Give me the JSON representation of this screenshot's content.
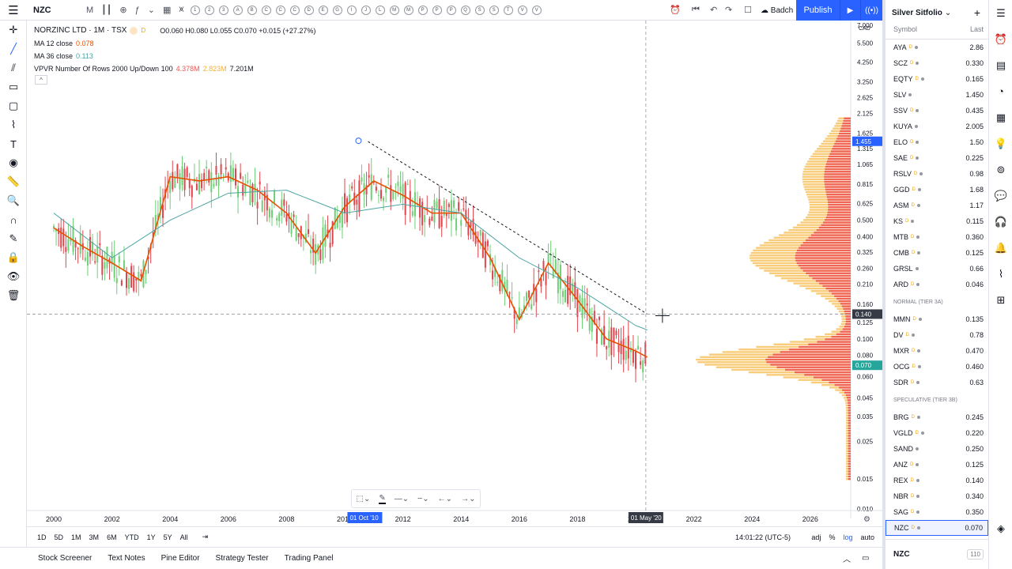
{
  "toolbar": {
    "symbol": "NZC",
    "interval": "M",
    "circle_icons": [
      "1",
      "2",
      "3",
      "A",
      "B",
      "C",
      "C",
      "C",
      "D",
      "E",
      "G",
      "I",
      "J",
      "L",
      "M",
      "M",
      "P",
      "P",
      "P",
      "Q",
      "S",
      "S",
      "T",
      "V",
      "V"
    ],
    "batch_label": "Badch",
    "publish_label": "Publish"
  },
  "legend": {
    "title": "NORZINC LTD · 1M · TSX",
    "flag": "D",
    "ohlc": "O0.060 H0.080 L0.055 C0.070 +0.015 (+27.27%)",
    "ma12_label": "MA 12 close",
    "ma12_value": "0.078",
    "ma36_label": "MA 36 close",
    "ma36_value": "0.113",
    "vpvr_label": "VPVR Number Of Rows 2000 Up/Down 100",
    "vpvr_v1": "4.378M",
    "vpvr_v2": "2.823M",
    "vpvr_v3": "7.201M"
  },
  "chart_data": {
    "type": "line",
    "title": "NORZINC LTD · 1M · TSX",
    "x_ticks": [
      "2000",
      "2002",
      "2004",
      "2006",
      "2008",
      "2010",
      "2012",
      "2014",
      "2016",
      "2018",
      "2020",
      "2022",
      "2024",
      "2026"
    ],
    "y_scale": "log",
    "y_currency": "CAD",
    "y_ticks": [
      "7.000",
      "5.500",
      "4.250",
      "3.250",
      "2.625",
      "2.125",
      "1.625",
      "1.315",
      "1.065",
      "0.815",
      "0.625",
      "0.500",
      "0.400",
      "0.325",
      "0.260",
      "0.210",
      "0.160",
      "0.125",
      "0.100",
      "0.080",
      "0.060",
      "0.045",
      "0.035",
      "0.025",
      "0.015",
      "0.010"
    ],
    "price_label_last": "1.455",
    "crosshair_price": "0.140",
    "current_price": "0.070",
    "crosshair_date": "01 May '20",
    "selected_date": "01 Oct '10",
    "series": [
      {
        "name": "MA 12 close",
        "x": [
          2000,
          2001,
          2002,
          2003,
          2004,
          2005,
          2006,
          2007,
          2008,
          2009,
          2010,
          2011,
          2012,
          2013,
          2014,
          2015,
          2016,
          2017,
          2018,
          2019,
          2020,
          2020.4
        ],
        "y": [
          0.45,
          0.35,
          0.28,
          0.22,
          0.9,
          0.85,
          0.9,
          0.75,
          0.55,
          0.32,
          0.6,
          0.85,
          0.7,
          0.55,
          0.55,
          0.3,
          0.13,
          0.28,
          0.17,
          0.1,
          0.085,
          0.078
        ]
      },
      {
        "name": "MA 36 close",
        "x": [
          2000,
          2002,
          2004,
          2006,
          2008,
          2010,
          2012,
          2014,
          2016,
          2018,
          2020,
          2020.4
        ],
        "y": [
          0.55,
          0.3,
          0.5,
          0.72,
          0.75,
          0.55,
          0.62,
          0.55,
          0.3,
          0.2,
          0.12,
          0.113
        ]
      }
    ],
    "trendline": {
      "from": [
        2010.8,
        1.45
      ],
      "to": [
        2020.4,
        0.14
      ]
    }
  },
  "range": {
    "buttons": [
      "1D",
      "5D",
      "1M",
      "3M",
      "6M",
      "YTD",
      "1Y",
      "5Y",
      "All"
    ],
    "time": "14:01:22 (UTC-5)",
    "adj": "adj",
    "percent": "%",
    "log": "log",
    "auto": "auto"
  },
  "bottom_tabs": [
    "Stock Screener",
    "Text Notes",
    "Pine Editor",
    "Strategy Tester",
    "Trading Panel"
  ],
  "watchlist": {
    "title": "Silver Sitfolio",
    "col_symbol": "Symbol",
    "col_last": "Last",
    "groups": [
      {
        "name": "",
        "rows": [
          {
            "s": "AYA",
            "d": true,
            "v": "2.86"
          },
          {
            "s": "SCZ",
            "d": true,
            "v": "0.330"
          },
          {
            "s": "EQTY",
            "d": true,
            "v": "0.165"
          },
          {
            "s": "SLV",
            "d": false,
            "v": "1.450"
          },
          {
            "s": "SSV",
            "d": true,
            "v": "0.435"
          },
          {
            "s": "KUYA",
            "d": false,
            "v": "2.005"
          },
          {
            "s": "ELO",
            "d": true,
            "v": "1.50"
          },
          {
            "s": "SAE",
            "d": true,
            "v": "0.225"
          },
          {
            "s": "RSLV",
            "d": true,
            "v": "0.98"
          },
          {
            "s": "GGD",
            "d": true,
            "v": "1.68"
          },
          {
            "s": "ASM",
            "d": true,
            "v": "1.17"
          },
          {
            "s": "KS",
            "d": true,
            "v": "0.115"
          },
          {
            "s": "MTB",
            "d": true,
            "v": "0.360"
          },
          {
            "s": "CMB",
            "d": true,
            "v": "0.125"
          },
          {
            "s": "GRSL",
            "d": false,
            "v": "0.66"
          },
          {
            "s": "ARD",
            "d": true,
            "v": "0.046"
          }
        ]
      },
      {
        "name": "NORMAL (TIER 3A)",
        "rows": [
          {
            "s": "MMN",
            "d": true,
            "v": "0.135"
          },
          {
            "s": "DV",
            "d": true,
            "v": "0.78"
          },
          {
            "s": "MXR",
            "d": true,
            "v": "0.470"
          },
          {
            "s": "OCG",
            "d": true,
            "v": "0.460"
          },
          {
            "s": "SDR",
            "d": true,
            "v": "0.63"
          }
        ]
      },
      {
        "name": "SPECULATIVE (TIER 3B)",
        "rows": [
          {
            "s": "BRG",
            "d": true,
            "v": "0.245"
          },
          {
            "s": "VGLD",
            "d": true,
            "v": "0.220"
          },
          {
            "s": "SAND",
            "d": false,
            "v": "0.250"
          },
          {
            "s": "ANZ",
            "d": true,
            "v": "0.125"
          },
          {
            "s": "REX",
            "d": true,
            "v": "0.140"
          },
          {
            "s": "NBR",
            "d": true,
            "v": "0.340"
          },
          {
            "s": "SAG",
            "d": true,
            "v": "0.350"
          },
          {
            "s": "NZC",
            "d": true,
            "v": "0.070",
            "selected": true
          }
        ]
      }
    ],
    "detail_symbol": "NZC",
    "detail_count": "110"
  }
}
